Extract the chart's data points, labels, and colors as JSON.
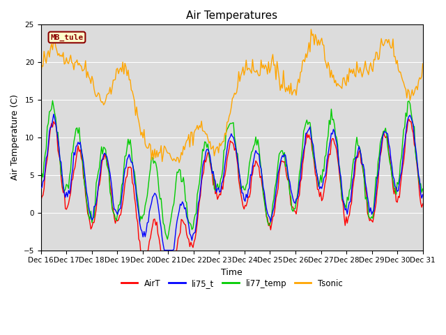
{
  "title": "Air Temperatures",
  "xlabel": "Time",
  "ylabel": "Air Temperature (C)",
  "ylim": [
    -5,
    25
  ],
  "yticks": [
    -5,
    0,
    5,
    10,
    15,
    20,
    25
  ],
  "xtick_labels": [
    "Dec 16",
    "Dec 17",
    "Dec 18",
    "Dec 19",
    "Dec 20",
    "Dec 21",
    "Dec 22",
    "Dec 23",
    "Dec 24",
    "Dec 25",
    "Dec 26",
    "Dec 27",
    "Dec 28",
    "Dec 29",
    "Dec 30",
    "Dec 31"
  ],
  "colors": {
    "AirT": "#ff0000",
    "li75_t": "#0000ff",
    "li77_temp": "#00cc00",
    "Tsonic": "#ffa500"
  },
  "legend_label": "MB_tule",
  "legend_facecolor": "#ffffcc",
  "legend_edgecolor": "#8b0000",
  "bg_color": "#dcdcdc",
  "title_fontsize": 11,
  "axis_label_fontsize": 9,
  "tick_fontsize": 7.5,
  "line_width": 1.0
}
